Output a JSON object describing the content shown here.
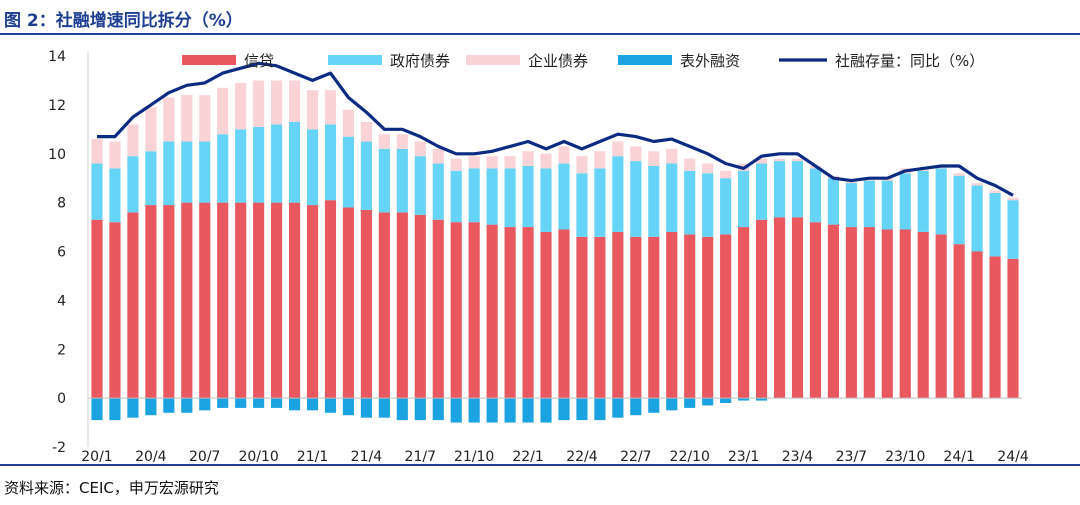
{
  "header": {
    "title": "图 2：社融增速同比拆分（%）"
  },
  "footer": {
    "source": "资料来源：CEIC，申万宏源研究"
  },
  "colors": {
    "loans": "#e8585e",
    "gov_bonds": "#66d4f6",
    "corp_bonds": "#f9d3d5",
    "off_balance": "#1aa3e0",
    "tsf_line": "#0b2a82",
    "header": "#1f3f93"
  },
  "chart_data": {
    "type": "bar",
    "title": "社融增速同比拆分（%）",
    "xlabel": "",
    "ylabel": "",
    "ylim": [
      -2,
      14
    ],
    "yticks": [
      "14",
      "12",
      "10",
      "8",
      "6",
      "4",
      "2",
      "0",
      "-2"
    ],
    "stacked": true,
    "categories": [
      "20/1",
      "20/2",
      "20/3",
      "20/4",
      "20/5",
      "20/6",
      "20/7",
      "20/8",
      "20/9",
      "20/10",
      "20/11",
      "20/12",
      "21/1",
      "21/2",
      "21/3",
      "21/4",
      "21/5",
      "21/6",
      "21/7",
      "21/8",
      "21/9",
      "21/10",
      "21/11",
      "21/12",
      "22/1",
      "22/2",
      "22/3",
      "22/4",
      "22/5",
      "22/6",
      "22/7",
      "22/8",
      "22/9",
      "22/10",
      "22/11",
      "22/12",
      "23/1",
      "23/2",
      "23/3",
      "23/4",
      "23/5",
      "23/6",
      "23/7",
      "23/8",
      "23/9",
      "23/10",
      "23/11",
      "23/12",
      "24/1",
      "24/2",
      "24/3",
      "24/4"
    ],
    "x_tick_labels": [
      "20/1",
      "20/4",
      "20/7",
      "20/10",
      "21/1",
      "21/4",
      "21/7",
      "21/10",
      "22/1",
      "22/4",
      "22/7",
      "22/10",
      "23/1",
      "23/4",
      "23/7",
      "23/10",
      "24/1",
      "24/4"
    ],
    "legend": [
      "信贷",
      "政府债券",
      "企业债券",
      "表外融资",
      "社融存量：同比（%）"
    ],
    "series": [
      {
        "name": "信贷",
        "kind": "bar",
        "values": [
          7.3,
          7.2,
          7.6,
          7.9,
          7.9,
          8.0,
          8.0,
          8.0,
          8.0,
          8.0,
          8.0,
          8.0,
          7.9,
          8.1,
          7.8,
          7.7,
          7.6,
          7.6,
          7.5,
          7.3,
          7.2,
          7.2,
          7.1,
          7.0,
          7.0,
          6.8,
          6.9,
          6.6,
          6.6,
          6.8,
          6.6,
          6.6,
          6.8,
          6.7,
          6.6,
          6.7,
          7.0,
          7.3,
          7.4,
          7.4,
          7.2,
          7.1,
          7.0,
          7.0,
          6.9,
          6.9,
          6.8,
          6.7,
          6.3,
          6.0,
          5.8,
          5.7
        ]
      },
      {
        "name": "政府债券",
        "kind": "bar",
        "values": [
          2.3,
          2.2,
          2.3,
          2.2,
          2.6,
          2.5,
          2.5,
          2.8,
          3.0,
          3.1,
          3.2,
          3.3,
          3.1,
          3.1,
          2.9,
          2.8,
          2.6,
          2.6,
          2.4,
          2.3,
          2.1,
          2.2,
          2.3,
          2.4,
          2.5,
          2.6,
          2.7,
          2.6,
          2.8,
          3.1,
          3.1,
          2.9,
          2.8,
          2.6,
          2.6,
          2.3,
          2.3,
          2.3,
          2.3,
          2.3,
          2.2,
          1.9,
          1.8,
          1.9,
          2.0,
          2.3,
          2.5,
          2.7,
          2.8,
          2.7,
          2.6,
          2.4
        ]
      },
      {
        "name": "企业债券",
        "kind": "bar",
        "values": [
          1.0,
          1.1,
          1.3,
          1.8,
          1.8,
          1.9,
          1.9,
          1.9,
          1.9,
          1.9,
          1.8,
          1.7,
          1.6,
          1.4,
          1.1,
          0.8,
          0.6,
          0.6,
          0.6,
          0.6,
          0.5,
          0.5,
          0.5,
          0.5,
          0.6,
          0.6,
          0.7,
          0.7,
          0.7,
          0.6,
          0.6,
          0.6,
          0.6,
          0.5,
          0.4,
          0.3,
          0.3,
          0.2,
          0.1,
          0.1,
          0.1,
          0.1,
          0.1,
          0.1,
          0.1,
          0.2,
          0.1,
          0.1,
          0.1,
          0.1,
          0.1,
          0.1
        ]
      },
      {
        "name": "表外融资",
        "kind": "bar",
        "values": [
          -0.9,
          -0.9,
          -0.8,
          -0.7,
          -0.6,
          -0.6,
          -0.5,
          -0.4,
          -0.4,
          -0.4,
          -0.4,
          -0.5,
          -0.5,
          -0.6,
          -0.7,
          -0.8,
          -0.8,
          -0.9,
          -0.9,
          -0.9,
          -1.0,
          -1.0,
          -1.0,
          -1.0,
          -1.0,
          -1.0,
          -0.9,
          -0.9,
          -0.9,
          -0.8,
          -0.7,
          -0.6,
          -0.5,
          -0.4,
          -0.3,
          -0.2,
          -0.1,
          -0.1,
          0.0,
          0.0,
          0.0,
          0.0,
          0.0,
          0.0,
          0.0,
          0.0,
          0.0,
          0.0,
          0.0,
          0.0,
          0.0,
          0.0
        ]
      },
      {
        "name": "社融存量：同比（%）",
        "kind": "line",
        "values": [
          10.7,
          10.7,
          11.5,
          12.0,
          12.5,
          12.8,
          12.9,
          13.3,
          13.5,
          13.7,
          13.6,
          13.3,
          13.0,
          13.3,
          12.3,
          11.7,
          11.0,
          11.0,
          10.7,
          10.3,
          10.0,
          10.0,
          10.1,
          10.3,
          10.5,
          10.2,
          10.5,
          10.2,
          10.5,
          10.8,
          10.7,
          10.5,
          10.6,
          10.3,
          10.0,
          9.6,
          9.4,
          9.9,
          10.0,
          10.0,
          9.5,
          9.0,
          8.9,
          9.0,
          9.0,
          9.3,
          9.4,
          9.5,
          9.5,
          9.0,
          8.7,
          8.3
        ]
      }
    ]
  }
}
